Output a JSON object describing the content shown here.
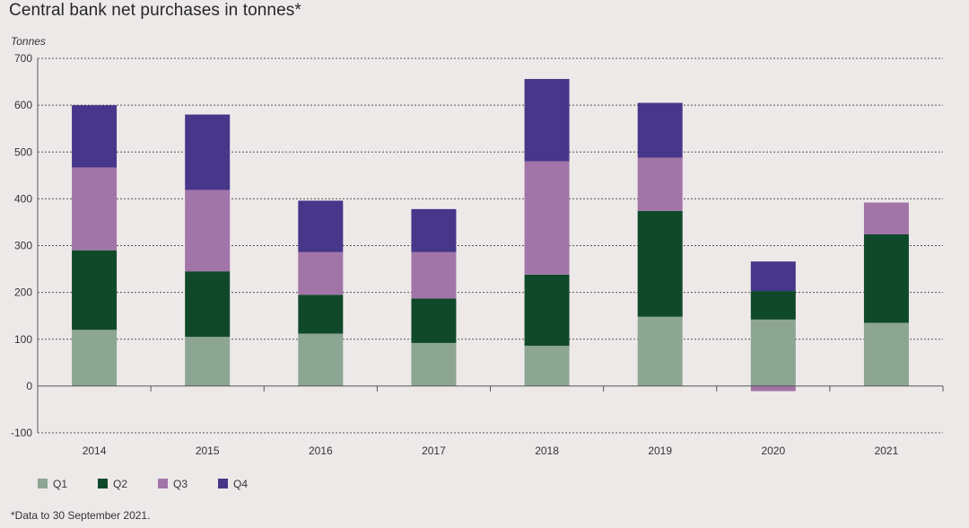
{
  "chart_data": {
    "type": "bar",
    "stacked": true,
    "title": "Central bank net purchases in tonnes*",
    "ylabel": "Tonnes",
    "xlabel": "",
    "ylim": [
      -100,
      700
    ],
    "yticks": [
      -100,
      0,
      100,
      200,
      300,
      400,
      500,
      600,
      700
    ],
    "grid": true,
    "legend_position": "bottom-left",
    "categories": [
      "2014",
      "2015",
      "2016",
      "2017",
      "2018",
      "2019",
      "2020",
      "2021"
    ],
    "series": [
      {
        "name": "Q1",
        "color": "#8da593",
        "values": [
          120,
          105,
          112,
          92,
          86,
          148,
          142,
          135
        ]
      },
      {
        "name": "Q2",
        "color": "#10492a",
        "values": [
          170,
          140,
          83,
          95,
          152,
          226,
          61,
          189
        ]
      },
      {
        "name": "Q3",
        "color": "#a275a8",
        "values": [
          177,
          174,
          91,
          99,
          242,
          114,
          -11,
          68
        ]
      },
      {
        "name": "Q4",
        "color": "#47378a",
        "values": [
          133,
          161,
          110,
          92,
          176,
          117,
          63,
          0
        ]
      }
    ],
    "footnote": "*Data to 30 September 2021."
  }
}
